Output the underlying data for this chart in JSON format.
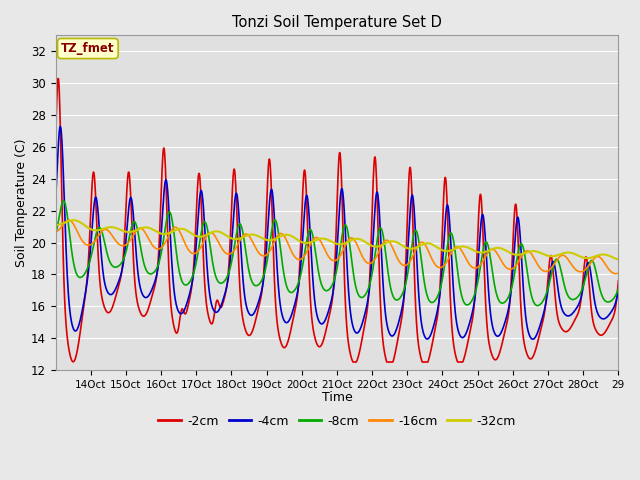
{
  "title": "Tonzi Soil Temperature Set D",
  "xlabel": "Time",
  "ylabel": "Soil Temperature (C)",
  "ylim": [
    12,
    33
  ],
  "xlim": [
    0,
    384
  ],
  "fig_facecolor": "#e8e8e8",
  "ax_facecolor": "#e0e0e0",
  "grid_color": "#ffffff",
  "annotation_text": "TZ_fmet",
  "annotation_bg": "#ffffcc",
  "annotation_border": "#b8b800",
  "annotation_text_color": "#880000",
  "lines": [
    {
      "label": "-2cm",
      "color": "#dd0000",
      "lw": 1.2
    },
    {
      "label": "-4cm",
      "color": "#0000cc",
      "lw": 1.2
    },
    {
      "label": "-8cm",
      "color": "#00aa00",
      "lw": 1.2
    },
    {
      "label": "-16cm",
      "color": "#ff8800",
      "lw": 1.2
    },
    {
      "label": "-32cm",
      "color": "#cccc00",
      "lw": 1.5
    }
  ],
  "xtick_labels": [
    "14Oct",
    "15Oct",
    "16Oct",
    "17Oct",
    "18Oct",
    "19Oct",
    "20Oct",
    "21Oct",
    "22Oct",
    "23Oct",
    "24Oct",
    "25Oct",
    "26Oct",
    "27Oct",
    "28Oct",
    "29"
  ],
  "xtick_positions": [
    24,
    48,
    72,
    96,
    120,
    144,
    168,
    192,
    216,
    240,
    264,
    288,
    312,
    336,
    360,
    384
  ],
  "yticks": [
    12,
    14,
    16,
    18,
    20,
    22,
    24,
    26,
    28,
    30,
    32
  ]
}
